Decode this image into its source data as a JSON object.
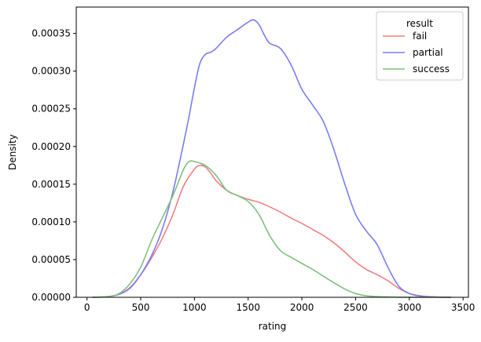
{
  "chart_data": {
    "type": "line",
    "title": "",
    "xlabel": "rating",
    "ylabel": "Density",
    "xlim": [
      -100,
      3550
    ],
    "ylim": [
      0,
      0.000385
    ],
    "xticks": [
      0,
      500,
      1000,
      1500,
      2000,
      2500,
      3000,
      3500
    ],
    "xtick_labels": [
      "0",
      "500",
      "1000",
      "1500",
      "2000",
      "2500",
      "3000",
      "3500"
    ],
    "yticks": [
      0,
      5e-05,
      0.0001,
      0.00015,
      0.0002,
      0.00025,
      0.0003,
      0.00035
    ],
    "ytick_labels": [
      "0.00000",
      "0.00005",
      "0.00010",
      "0.00015",
      "0.00020",
      "0.00025",
      "0.00030",
      "0.00035"
    ],
    "grid": false,
    "legend": {
      "title": "result",
      "placement": "top-right"
    },
    "series": [
      {
        "name": "fail",
        "color": "#f08080",
        "x": [
          50,
          200,
          300,
          400,
          500,
          600,
          700,
          800,
          900,
          1000,
          1050,
          1100,
          1150,
          1200,
          1300,
          1400,
          1500,
          1600,
          1700,
          1800,
          1900,
          2000,
          2100,
          2200,
          2300,
          2400,
          2500,
          2600,
          2700,
          2800,
          2900,
          3000,
          3100,
          3200,
          3300,
          3390
        ],
        "y": [
          0,
          1e-06,
          4e-06,
          1.3e-05,
          3e-05,
          5.2e-05,
          7.8e-05,
          0.00011,
          0.000148,
          0.00017,
          0.000175,
          0.000173,
          0.000165,
          0.000155,
          0.000142,
          0.000135,
          0.00013,
          0.000126,
          0.00012,
          0.000113,
          0.000105,
          9.8e-05,
          9e-05,
          8.2e-05,
          7.2e-05,
          6e-05,
          4.7e-05,
          3.7e-05,
          3e-05,
          2.2e-05,
          1.2e-05,
          5e-06,
          2e-06,
          8e-07,
          2e-07,
          0
        ]
      },
      {
        "name": "partial",
        "color": "#7b7bf5",
        "x": [
          50,
          200,
          300,
          400,
          500,
          600,
          700,
          800,
          900,
          950,
          1000,
          1050,
          1100,
          1150,
          1200,
          1300,
          1400,
          1500,
          1550,
          1600,
          1650,
          1700,
          1800,
          1900,
          2000,
          2100,
          2200,
          2300,
          2400,
          2500,
          2600,
          2700,
          2800,
          2900,
          3000,
          3100,
          3200,
          3300,
          3390
        ],
        "y": [
          0,
          1e-06,
          4e-06,
          1.2e-05,
          3e-05,
          5.5e-05,
          9e-05,
          0.00014,
          0.000205,
          0.00024,
          0.000278,
          0.00031,
          0.000322,
          0.000325,
          0.00033,
          0.000345,
          0.000355,
          0.000365,
          0.000368,
          0.000362,
          0.000348,
          0.000337,
          0.00033,
          0.000308,
          0.000276,
          0.000255,
          0.000233,
          0.000195,
          0.00015,
          0.00011,
          8.8e-05,
          7e-05,
          4e-05,
          1.5e-05,
          5e-06,
          1.5e-06,
          4e-07,
          1e-07,
          0
        ]
      },
      {
        "name": "success",
        "color": "#80c080",
        "x": [
          50,
          200,
          300,
          400,
          500,
          600,
          700,
          800,
          900,
          950,
          1000,
          1100,
          1200,
          1300,
          1400,
          1500,
          1600,
          1700,
          1800,
          1900,
          2000,
          2100,
          2200,
          2300,
          2400,
          2500,
          2600,
          2700,
          2800,
          2900,
          3000,
          3100,
          3200,
          3300,
          3390
        ],
        "y": [
          0,
          1e-06,
          5e-06,
          1.8e-05,
          4e-05,
          7.5e-05,
          0.000105,
          0.000135,
          0.00017,
          0.00018,
          0.00018,
          0.000175,
          0.000162,
          0.000142,
          0.000135,
          0.000127,
          0.00011,
          8.2e-05,
          6.2e-05,
          5.3e-05,
          4.5e-05,
          3.7e-05,
          2.8e-05,
          1.9e-05,
          1.1e-05,
          5e-06,
          2e-06,
          1e-06,
          5e-07,
          2e-07,
          1e-07,
          0,
          0,
          0,
          0
        ]
      }
    ]
  }
}
